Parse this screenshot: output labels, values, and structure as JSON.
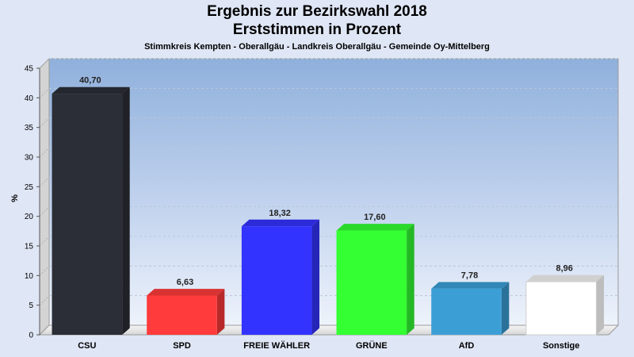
{
  "chart_data": {
    "type": "bar",
    "title": [
      "Ergebnis zur Bezirkswahl 2018",
      "Erststimmen in Prozent"
    ],
    "subtitle": "Stimmkreis Kempten - Oberallgäu - Landkreis Oberallgäu - Gemeinde Oy-Mittelberg",
    "ylabel": "%",
    "xlabel": "",
    "ylim": [
      0,
      45
    ],
    "yticks": [
      0,
      5,
      10,
      15,
      20,
      25,
      30,
      35,
      40,
      45
    ],
    "grid": true,
    "categories": [
      "CSU",
      "SPD",
      "FREIE WÄHLER",
      "GRÜNE",
      "AfD",
      "Sonstige"
    ],
    "values": [
      40.7,
      6.63,
      18.32,
      17.6,
      7.78,
      8.96
    ],
    "value_labels": [
      "40,70",
      "6,63",
      "18,32",
      "17,60",
      "7,78",
      "8,96"
    ],
    "colors": [
      "#2b2e36",
      "#ff3b3b",
      "#3333ff",
      "#33ff33",
      "#3b9fd6",
      "#ffffff"
    ]
  }
}
